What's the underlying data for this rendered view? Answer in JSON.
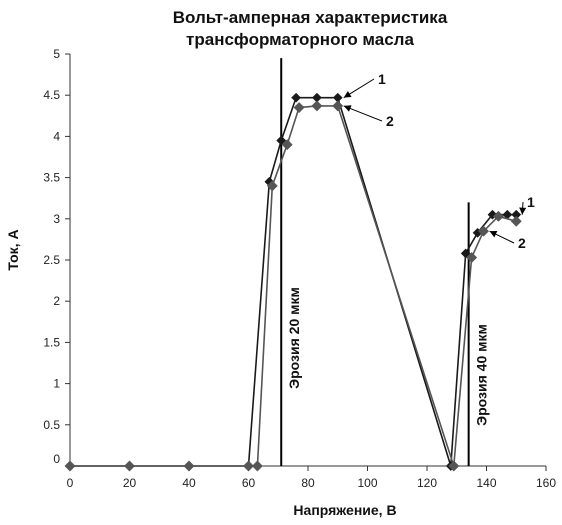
{
  "chart_data": {
    "type": "line",
    "title_lines": [
      "Вольт-амперная   характеристика",
      "трансформаторного    масла"
    ],
    "xlabel": "Напряжение,  В",
    "ylabel": "Ток, А",
    "xlim": [
      0,
      160
    ],
    "ylim": [
      0,
      5
    ],
    "x_ticks": [
      "0",
      "20",
      "40",
      "60",
      "80",
      "100",
      "120",
      "140",
      "160"
    ],
    "y_ticks": [
      "0",
      "0.5",
      "1",
      "1.5",
      "2",
      "2.5",
      "3",
      "3.5",
      "4",
      "4.5",
      "5"
    ],
    "grid": false,
    "series": [
      {
        "name": "1",
        "color": "#1a1a1a",
        "x": [
          0,
          20,
          40,
          60,
          67,
          71,
          76,
          83,
          90,
          128,
          133,
          137,
          142,
          147,
          150
        ],
        "y": [
          0,
          0,
          0,
          0,
          3.45,
          3.95,
          4.47,
          4.47,
          4.47,
          0,
          2.58,
          2.83,
          3.05,
          3.05,
          3.05
        ]
      },
      {
        "name": "2",
        "color": "#555555",
        "x": [
          0,
          20,
          40,
          60,
          63,
          68,
          73,
          77,
          83,
          90,
          129,
          135,
          139,
          144,
          150
        ],
        "y": [
          0,
          0,
          0,
          0,
          0,
          3.4,
          3.9,
          4.35,
          4.37,
          4.37,
          0,
          2.53,
          2.85,
          3.03,
          2.97
        ]
      }
    ],
    "annotations": [
      {
        "text": "Эрозия 20 мкм",
        "x": 71,
        "y_from": 0,
        "y_to": 4.95
      },
      {
        "text": "Эрозия 40 мкм",
        "x": 134,
        "y_from": 0,
        "y_to": 3.2
      }
    ]
  }
}
